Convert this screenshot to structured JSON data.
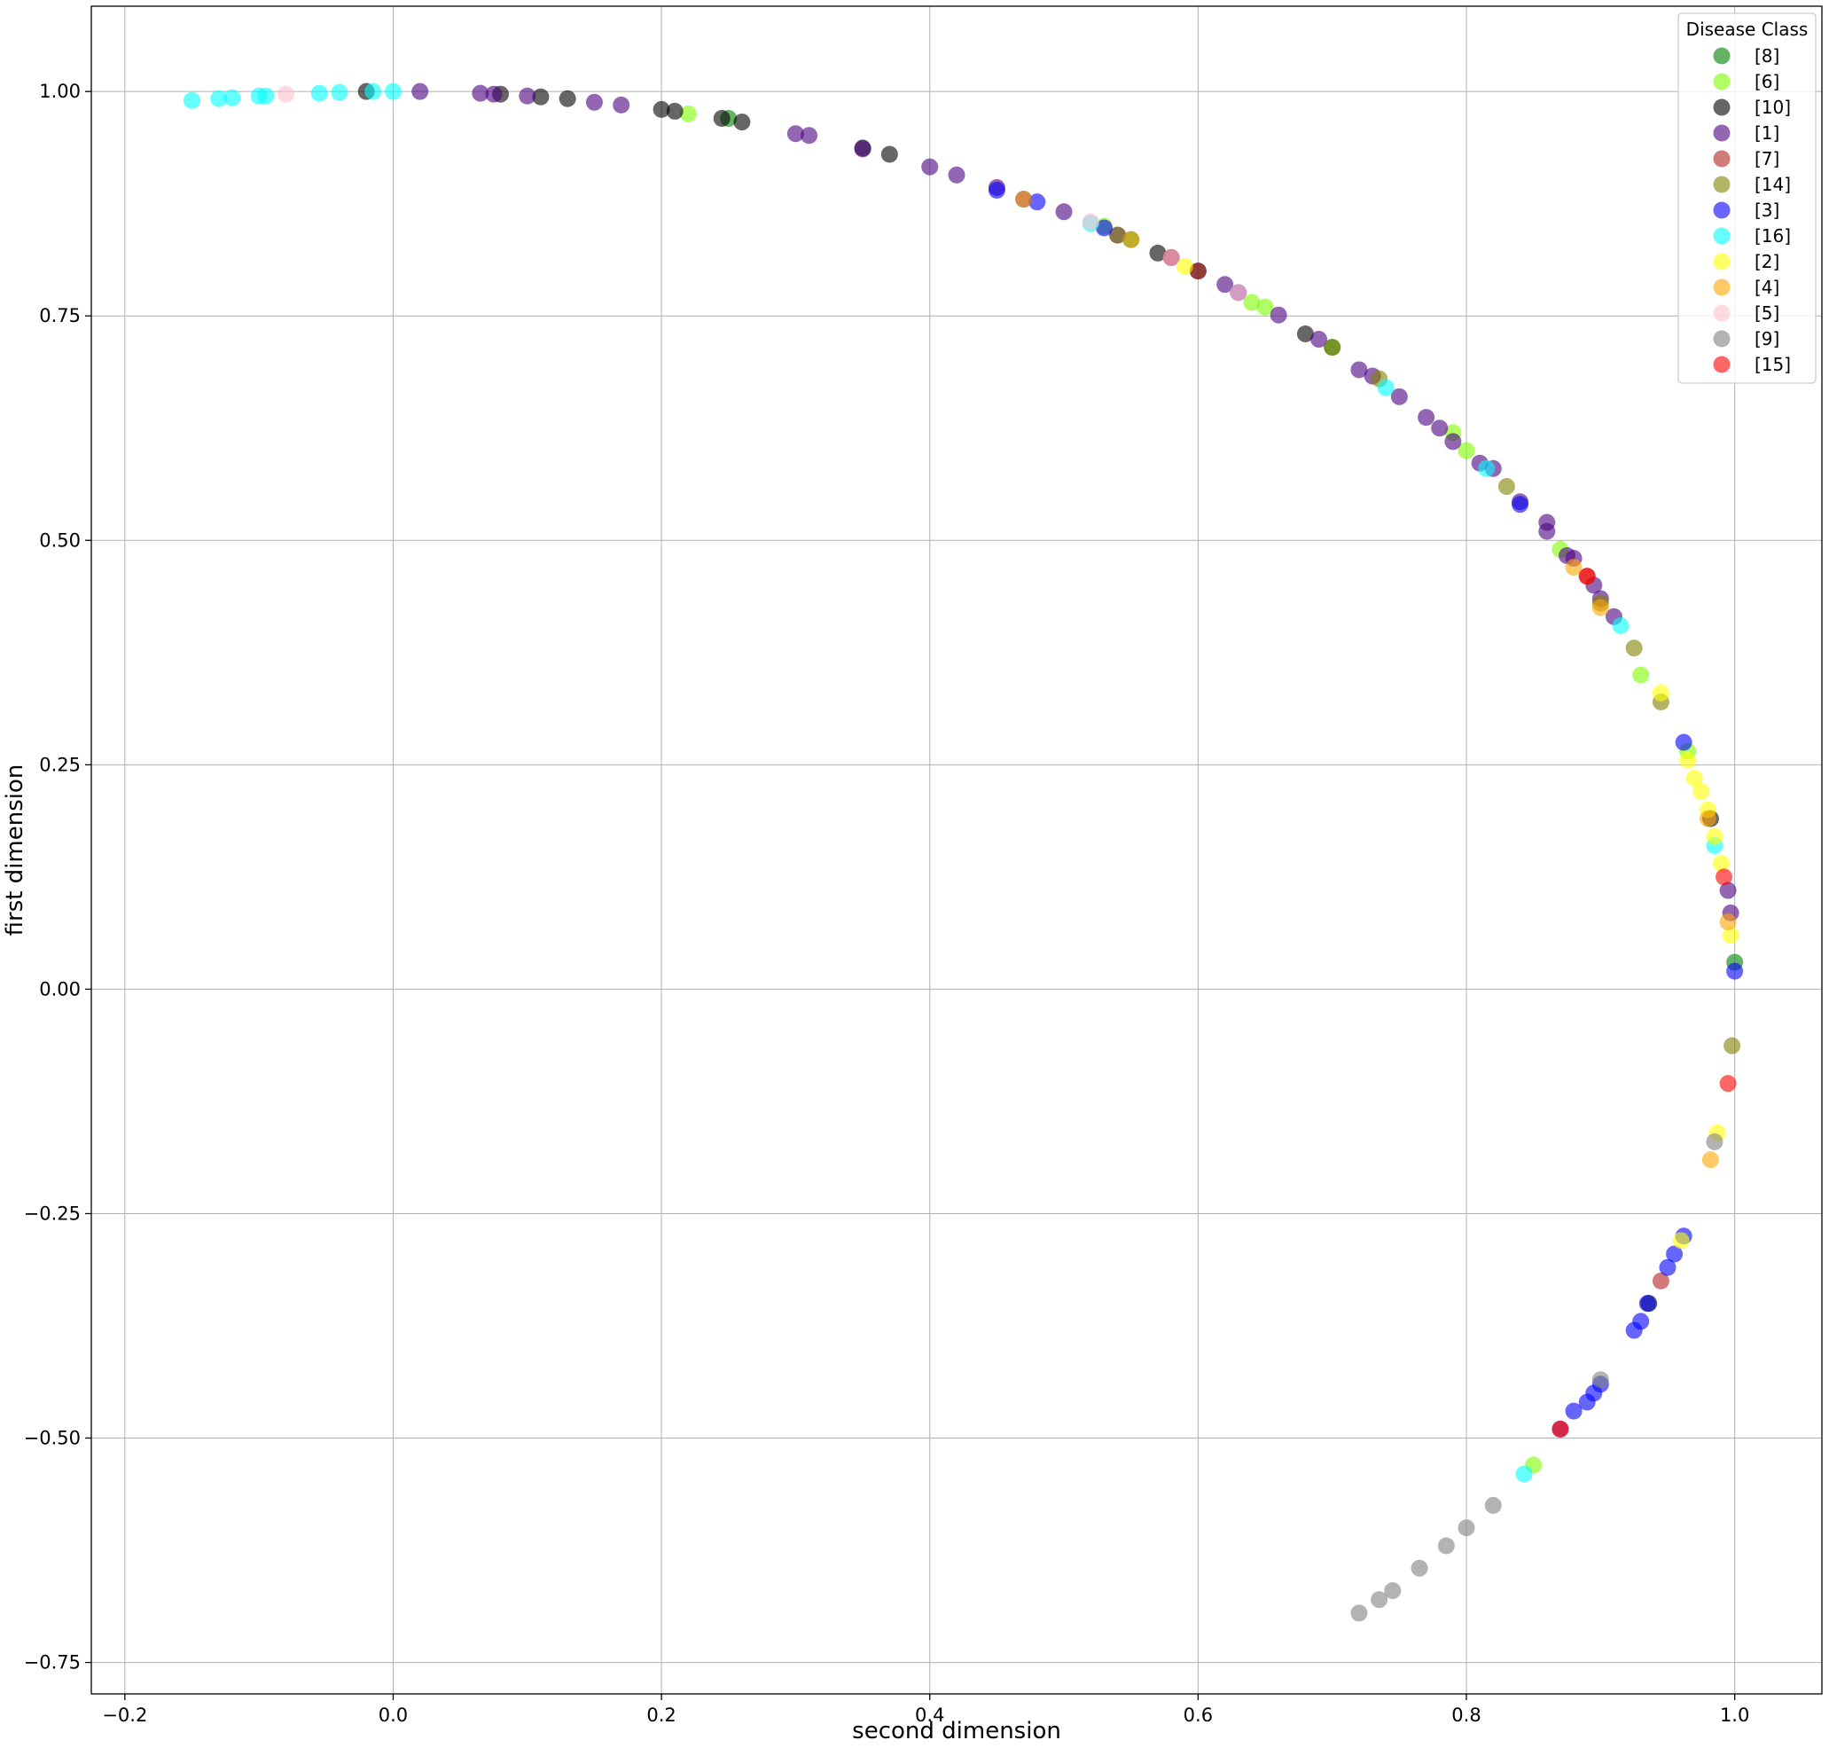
{
  "chart_data": {
    "type": "scatter",
    "title": "",
    "xlabel": "second dimension",
    "ylabel": "first dimension",
    "xlim": [
      -0.225,
      1.065
    ],
    "ylim": [
      -0.785,
      1.095
    ],
    "xticks": [
      -0.2,
      0.0,
      0.2,
      0.4,
      0.6,
      0.8,
      1.0
    ],
    "xtick_labels": [
      "−0.2",
      "0.0",
      "0.2",
      "0.4",
      "0.6",
      "0.8",
      "1.0"
    ],
    "yticks": [
      -0.75,
      -0.5,
      -0.25,
      0.0,
      0.25,
      0.5,
      0.75,
      1.0
    ],
    "ytick_labels": [
      "−0.75",
      "−0.50",
      "−0.25",
      "0.00",
      "0.25",
      "0.50",
      "0.75",
      "1.00"
    ],
    "grid": true,
    "marker_alpha": 0.6,
    "legend": {
      "title": "Disease Class",
      "position": "top-right"
    },
    "series": [
      {
        "name": "[8]",
        "color": "#008000",
        "x": [
          0.7,
          1.0,
          0.25,
          0.55
        ],
        "y": [
          0.715,
          0.03,
          0.97,
          0.835
        ]
      },
      {
        "name": "[6]",
        "color": "#7cfc00",
        "x": [
          0.64,
          0.8,
          0.93,
          0.85,
          0.22,
          0.53,
          0.65,
          0.79,
          0.965,
          0.87
        ],
        "y": [
          0.765,
          0.6,
          0.35,
          -0.53,
          0.975,
          0.85,
          0.76,
          0.62,
          0.265,
          0.49
        ]
      },
      {
        "name": "[10]",
        "color": "#000000",
        "x": [
          -0.02,
          0.08,
          0.11,
          0.13,
          0.21,
          0.245,
          0.35,
          0.57,
          0.68,
          0.936,
          0.982,
          0.2,
          0.26,
          0.37,
          0.6
        ],
        "y": [
          1.0,
          0.997,
          0.994,
          0.992,
          0.978,
          0.97,
          0.937,
          0.82,
          0.73,
          -0.35,
          0.19,
          0.98,
          0.966,
          0.93,
          0.8
        ]
      },
      {
        "name": "[1]",
        "color": "#4b0082",
        "x": [
          0.02,
          0.065,
          0.1,
          0.15,
          0.17,
          0.3,
          0.35,
          0.4,
          0.45,
          0.5,
          0.58,
          0.62,
          0.66,
          0.69,
          0.72,
          0.75,
          0.78,
          0.81,
          0.82,
          0.86,
          0.88,
          0.895,
          0.91,
          0.995,
          0.997,
          0.87,
          0.075,
          0.31,
          0.42,
          0.47,
          0.54,
          0.63,
          0.73,
          0.77,
          0.79,
          0.84,
          0.86,
          0.875,
          0.9
        ],
        "y": [
          1.0,
          0.998,
          0.995,
          0.988,
          0.985,
          0.953,
          0.936,
          0.916,
          0.893,
          0.866,
          0.815,
          0.785,
          0.751,
          0.724,
          0.69,
          0.66,
          0.625,
          0.586,
          0.58,
          0.52,
          0.48,
          0.45,
          0.415,
          0.11,
          0.085,
          -0.49,
          0.997,
          0.951,
          0.907,
          0.88,
          0.84,
          0.776,
          0.683,
          0.637,
          0.61,
          0.543,
          0.51,
          0.483,
          0.435
        ]
      },
      {
        "name": "[7]",
        "color": "#b22222",
        "x": [
          0.945,
          0.58,
          0.89,
          0.6
        ],
        "y": [
          -0.325,
          0.815,
          0.46,
          0.8
        ]
      },
      {
        "name": "[14]",
        "color": "#808000",
        "x": [
          0.83,
          0.925,
          0.945,
          0.998,
          0.735,
          0.54,
          0.9,
          0.7
        ],
        "y": [
          0.56,
          0.38,
          0.32,
          -0.063,
          0.68,
          0.84,
          0.43,
          0.715
        ]
      },
      {
        "name": "[3]",
        "color": "#0000ff",
        "x": [
          0.48,
          0.53,
          0.84,
          0.962,
          1.0,
          0.962,
          0.955,
          0.95,
          0.925,
          0.93,
          0.9,
          0.895,
          0.89,
          0.88,
          0.935,
          0.45
        ],
        "y": [
          0.877,
          0.848,
          0.54,
          0.275,
          0.02,
          -0.275,
          -0.295,
          -0.31,
          -0.38,
          -0.37,
          -0.44,
          -0.45,
          -0.46,
          -0.47,
          -0.35,
          0.89
        ]
      },
      {
        "name": "[16]",
        "color": "#00ffff",
        "x": [
          -0.15,
          -0.13,
          -0.12,
          -0.1,
          -0.095,
          -0.055,
          -0.04,
          -0.015,
          0.0,
          0.52,
          0.74,
          0.815,
          0.915,
          0.985,
          0.843
        ],
        "y": [
          0.99,
          0.992,
          0.993,
          0.995,
          0.995,
          0.998,
          0.999,
          1.0,
          1.0,
          0.853,
          0.67,
          0.58,
          0.405,
          0.16,
          -0.54
        ]
      },
      {
        "name": "[2]",
        "color": "#ffff00",
        "x": [
          0.59,
          0.945,
          0.965,
          0.975,
          0.98,
          0.99,
          0.997,
          0.987,
          0.97,
          0.96,
          0.985
        ],
        "y": [
          0.805,
          0.33,
          0.255,
          0.22,
          0.2,
          0.14,
          0.06,
          -0.16,
          0.235,
          -0.28,
          0.17
        ]
      },
      {
        "name": "[4]",
        "color": "#ffa500",
        "x": [
          0.47,
          0.55,
          0.88,
          0.9,
          0.995,
          0.982,
          0.98
        ],
        "y": [
          0.88,
          0.835,
          0.47,
          0.425,
          0.075,
          -0.19,
          0.19
        ]
      },
      {
        "name": "[5]",
        "color": "#ffc0cb",
        "x": [
          -0.08,
          0.52,
          0.58,
          0.63
        ],
        "y": [
          0.997,
          0.855,
          0.815,
          0.776
        ]
      },
      {
        "name": "[9]",
        "color": "#808080",
        "x": [
          0.72,
          0.735,
          0.745,
          0.765,
          0.785,
          0.8,
          0.82,
          0.9,
          0.985
        ],
        "y": [
          -0.695,
          -0.68,
          -0.67,
          -0.645,
          -0.62,
          -0.6,
          -0.575,
          -0.435,
          -0.17
        ]
      },
      {
        "name": "[15]",
        "color": "#ff0000",
        "x": [
          0.992,
          0.995,
          0.87,
          0.89
        ],
        "y": [
          0.125,
          -0.105,
          -0.49,
          0.46
        ]
      }
    ]
  }
}
